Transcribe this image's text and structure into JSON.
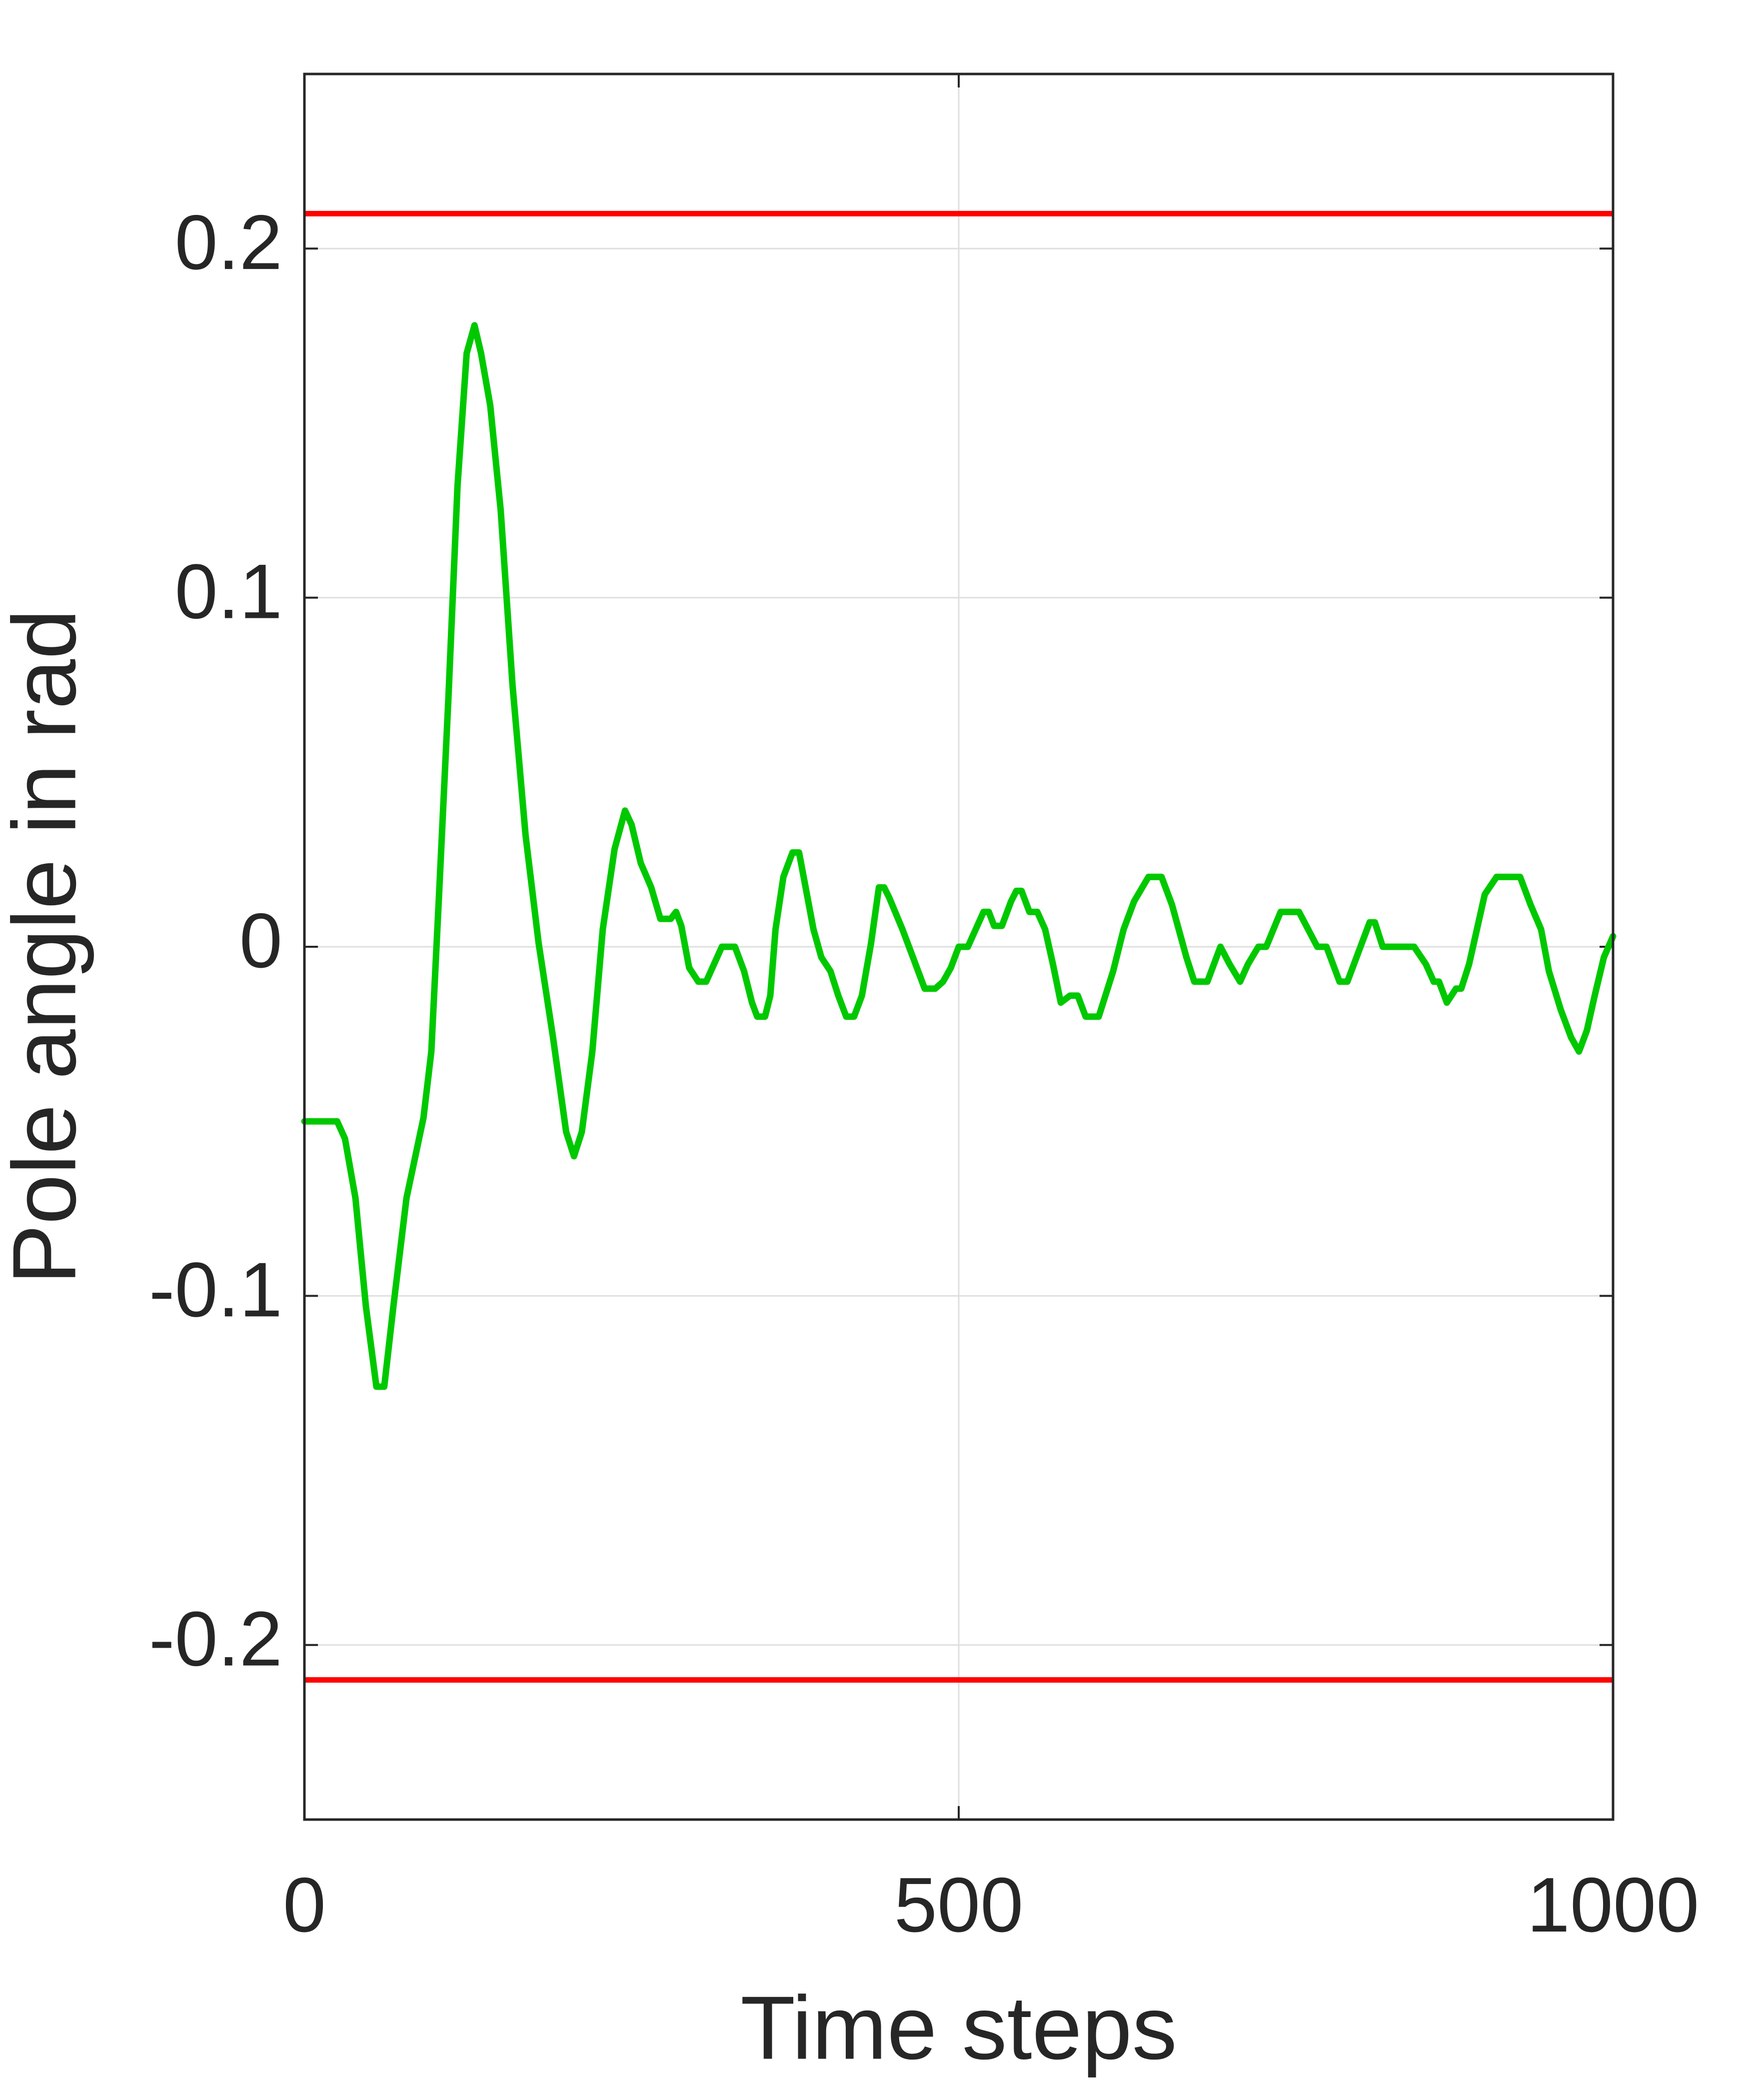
{
  "chart_data": {
    "type": "line",
    "xlabel": "Time steps",
    "ylabel": "Pole angle in rad",
    "xlim": [
      0,
      1000
    ],
    "xticks": [
      0,
      500,
      1000
    ],
    "ylim": [
      -0.25,
      0.25
    ],
    "yticks": [
      -0.2,
      -0.1,
      0,
      0.1,
      0.2
    ],
    "grid": true,
    "hlines": [
      {
        "value": 0.21,
        "color": "#ff0000"
      },
      {
        "value": -0.21,
        "color": "#ff0000"
      }
    ],
    "x": [
      0,
      25,
      31,
      39,
      47,
      55,
      61,
      68,
      78,
      91,
      97,
      103,
      110,
      117,
      124,
      130,
      135,
      142,
      150,
      159,
      169,
      179,
      190,
      200,
      206,
      212,
      220,
      228,
      237,
      245,
      250,
      257,
      265,
      272,
      280,
      284,
      288,
      294,
      301,
      307,
      313,
      319,
      329,
      336,
      342,
      346,
      352,
      356,
      360,
      366,
      373,
      378,
      383,
      389,
      395,
      402,
      408,
      414,
      420,
      426,
      433,
      439,
      443,
      447,
      457,
      465,
      474,
      482,
      488,
      494,
      500,
      507,
      513,
      519,
      523,
      527,
      533,
      540,
      544,
      548,
      554,
      560,
      566,
      572,
      578,
      585,
      591,
      597,
      607,
      618,
      626,
      634,
      645,
      655,
      663,
      674,
      680,
      690,
      700,
      707,
      715,
      721,
      729,
      735,
      746,
      760,
      774,
      781,
      791,
      797,
      807,
      814,
      818,
      824,
      848,
      857,
      863,
      867,
      873,
      880,
      884,
      890,
      896,
      902,
      911,
      929,
      937,
      945,
      951,
      960,
      968,
      974,
      980,
      986,
      993,
      1000
    ],
    "series": [
      {
        "name": "Pole angle",
        "color": "#00c800",
        "values": [
          -0.05,
          -0.05,
          -0.055,
          -0.072,
          -0.103,
          -0.126,
          -0.126,
          -0.103,
          -0.072,
          -0.049,
          -0.03,
          0.016,
          0.071,
          0.132,
          0.17,
          0.178,
          0.17,
          0.155,
          0.125,
          0.075,
          0.032,
          0.001,
          -0.026,
          -0.053,
          -0.06,
          -0.053,
          -0.03,
          0.005,
          0.028,
          0.039,
          0.035,
          0.024,
          0.017,
          0.008,
          0.008,
          0.01,
          0.006,
          -0.006,
          -0.01,
          -0.01,
          -0.005,
          0,
          0,
          -0.007,
          -0.016,
          -0.02,
          -0.02,
          -0.014,
          0.005,
          0.02,
          0.027,
          0.027,
          0.017,
          0.005,
          -0.003,
          -0.007,
          -0.014,
          -0.02,
          -0.02,
          -0.014,
          0.001,
          0.017,
          0.017,
          0.014,
          0.005,
          -0.003,
          -0.012,
          -0.012,
          -0.01,
          -0.006,
          0,
          0,
          0.005,
          0.01,
          0.01,
          0.006,
          0.006,
          0.013,
          0.016,
          0.016,
          0.01,
          0.01,
          0.005,
          -0.005,
          -0.016,
          -0.014,
          -0.014,
          -0.02,
          -0.02,
          -0.007,
          0.005,
          0.013,
          0.02,
          0.02,
          0.012,
          -0.003,
          -0.01,
          -0.01,
          0,
          -0.005,
          -0.01,
          -0.005,
          0,
          0,
          0.01,
          0.01,
          0,
          0,
          -0.01,
          -0.01,
          0,
          0.007,
          0.007,
          0,
          0,
          -0.005,
          -0.01,
          -0.01,
          -0.016,
          -0.012,
          -0.012,
          -0.005,
          0.005,
          0.015,
          0.02,
          0.02,
          0.012,
          0.005,
          -0.007,
          -0.018,
          -0.026,
          -0.03,
          -0.024,
          -0.014,
          -0.003,
          0.003
        ]
      }
    ]
  }
}
